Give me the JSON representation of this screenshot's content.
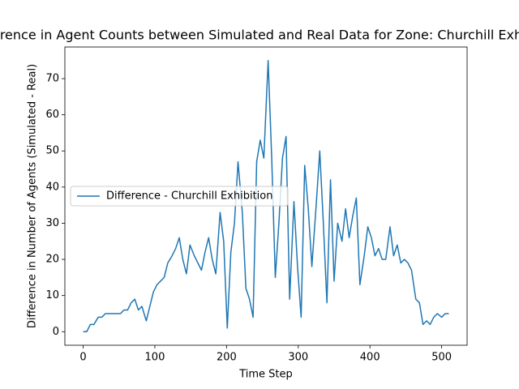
{
  "chart_data": {
    "type": "line",
    "title": "Difference in Agent Counts between Simulated and Real Data for Zone: Churchill Exhibition",
    "x_label": "Time Step",
    "y_label": "Difference in Number of Agents (Simulated - Real)",
    "x": [
      0,
      5,
      10,
      15,
      21,
      26,
      31,
      36,
      41,
      46,
      52,
      57,
      62,
      67,
      72,
      77,
      82,
      88,
      93,
      98,
      103,
      108,
      113,
      118,
      124,
      129,
      134,
      139,
      144,
      149,
      155,
      160,
      165,
      170,
      175,
      180,
      185,
      191,
      196,
      201,
      206,
      211,
      216,
      222,
      227,
      232,
      237,
      242,
      247,
      252,
      258,
      263,
      268,
      273,
      278,
      283,
      288,
      294,
      299,
      304,
      309,
      314,
      319,
      325,
      330,
      335,
      340,
      345,
      350,
      355,
      361,
      366,
      371,
      376,
      381,
      386,
      392,
      397,
      402,
      407,
      412,
      417,
      422,
      428,
      433,
      438,
      443,
      448,
      453,
      458,
      464,
      469,
      474,
      479,
      484,
      489,
      494,
      500,
      505,
      510
    ],
    "series": [
      {
        "name": "Difference - Churchill Exhibition",
        "color": "#1f77b4",
        "values": [
          0,
          0,
          2,
          2,
          4,
          4,
          5,
          5,
          5,
          5,
          5,
          6,
          6,
          8,
          9,
          6,
          7,
          3,
          7,
          11,
          13,
          14,
          15,
          19,
          21,
          23,
          26,
          20,
          16,
          24,
          21,
          19,
          17,
          22,
          26,
          20,
          16,
          33,
          25,
          1,
          22,
          30,
          47,
          33,
          12,
          9,
          4,
          47,
          53,
          48,
          75,
          48,
          15,
          30,
          48,
          54,
          9,
          36,
          18,
          4,
          46,
          34,
          18,
          35,
          50,
          30,
          8,
          42,
          14,
          30,
          25,
          34,
          26,
          32,
          37,
          13,
          21,
          29,
          26,
          21,
          23,
          20,
          20,
          29,
          21,
          24,
          19,
          20,
          19,
          17,
          9,
          8,
          2,
          3,
          2,
          4,
          5,
          4,
          5,
          5
        ]
      }
    ],
    "xlim": [
      -25.5,
      535.5
    ],
    "xticks": [
      0,
      100,
      200,
      300,
      400,
      500
    ],
    "ylim": [
      -3.75,
      78.75
    ],
    "yticks": [
      0,
      10,
      20,
      30,
      40,
      50,
      60,
      70
    ],
    "legend": "center left"
  }
}
